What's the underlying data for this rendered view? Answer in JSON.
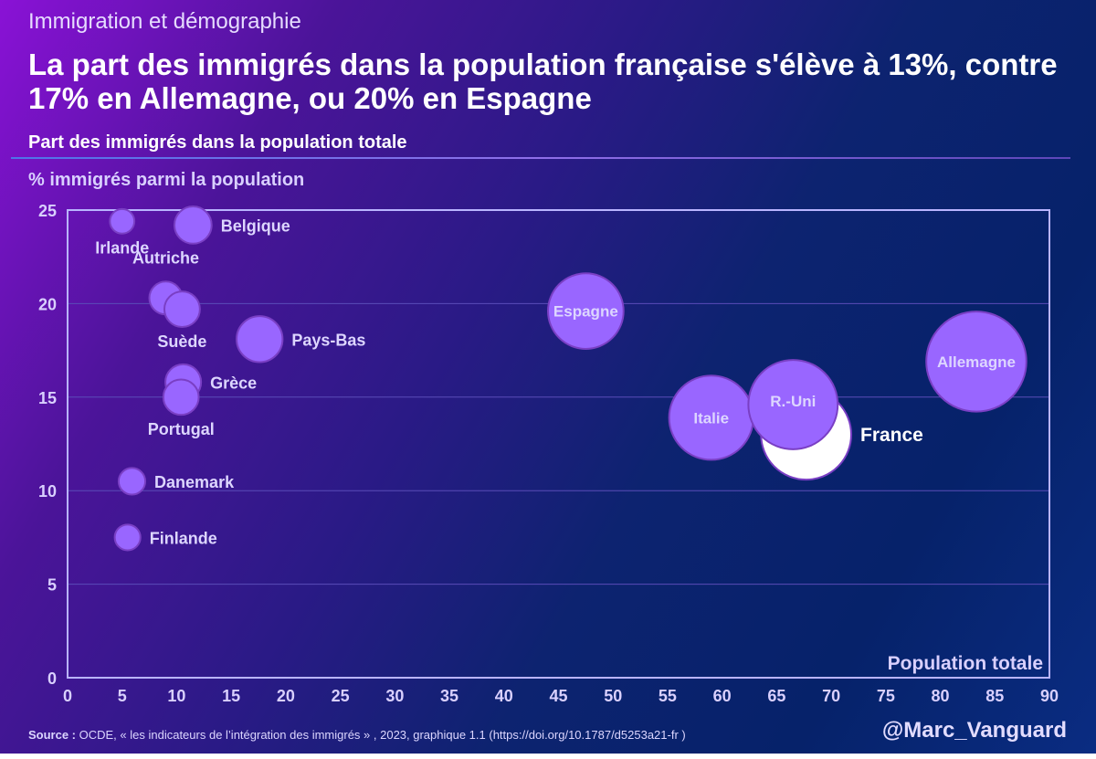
{
  "header": {
    "kicker": "Immigration et démographie",
    "headline": "La part des immigrés dans la population française s'élève à 13%, contre 17% en Allemagne, ou 20% en Espagne",
    "subtitle": "Part des immigrés dans la population totale"
  },
  "footer": {
    "source_label": "Source :",
    "source_text": " OCDE, « les indicateurs de l’intégration des immigrés » , 2023, graphique 1.1 (https://doi.org/10.1787/d5253a21-fr )",
    "handle": "@Marc_Vanguard"
  },
  "colors": {
    "bubble_fill": "#9966ff",
    "bubble_stroke": "#7a3fc4",
    "highlight_fill": "#ffffff",
    "axis": "#b9b4ff",
    "gridline": "#5a4cb8",
    "label": "#ddd6ff",
    "highlight_label": "#ffffff"
  },
  "chart_data": {
    "type": "scatter",
    "subtype": "bubble",
    "title": "Part des immigrés dans la population totale",
    "xlabel": "Population totale",
    "ylabel": "% immigrés parmi la population",
    "xlim": [
      0,
      90
    ],
    "ylim": [
      0,
      25
    ],
    "xticks": [
      0,
      5,
      10,
      15,
      20,
      25,
      30,
      35,
      40,
      45,
      50,
      55,
      60,
      65,
      70,
      75,
      80,
      85,
      90
    ],
    "yticks": [
      0,
      5,
      10,
      15,
      20,
      25
    ],
    "grid": "horizontal",
    "size_encoding": "population",
    "points": [
      {
        "label": "Irlande",
        "x": 5.0,
        "y": 24.4,
        "label_pos": "below"
      },
      {
        "label": "Belgique",
        "x": 11.5,
        "y": 24.2,
        "label_pos": "right"
      },
      {
        "label": "Autriche",
        "x": 9.0,
        "y": 20.3,
        "label_pos": "above"
      },
      {
        "label": "Suède",
        "x": 10.5,
        "y": 19.7,
        "label_pos": "below"
      },
      {
        "label": "Pays-Bas",
        "x": 17.6,
        "y": 18.1,
        "label_pos": "right"
      },
      {
        "label": "Espagne",
        "x": 47.5,
        "y": 19.6,
        "label_pos": "center"
      },
      {
        "label": "Allemagne",
        "x": 83.3,
        "y": 16.9,
        "label_pos": "center"
      },
      {
        "label": "Grèce",
        "x": 10.6,
        "y": 15.8,
        "label_pos": "right"
      },
      {
        "label": "Portugal",
        "x": 10.4,
        "y": 15.0,
        "label_pos": "below"
      },
      {
        "label": "France",
        "x": 67.7,
        "y": 13.0,
        "label_pos": "right",
        "highlight": true
      },
      {
        "label": "Italie",
        "x": 59.0,
        "y": 13.9,
        "label_pos": "center"
      },
      {
        "label": "R.-Uni",
        "x": 66.5,
        "y": 14.6,
        "label_pos": "center-up"
      },
      {
        "label": "Danemark",
        "x": 5.9,
        "y": 10.5,
        "label_pos": "right"
      },
      {
        "label": "Finlande",
        "x": 5.5,
        "y": 7.5,
        "label_pos": "right"
      }
    ]
  }
}
